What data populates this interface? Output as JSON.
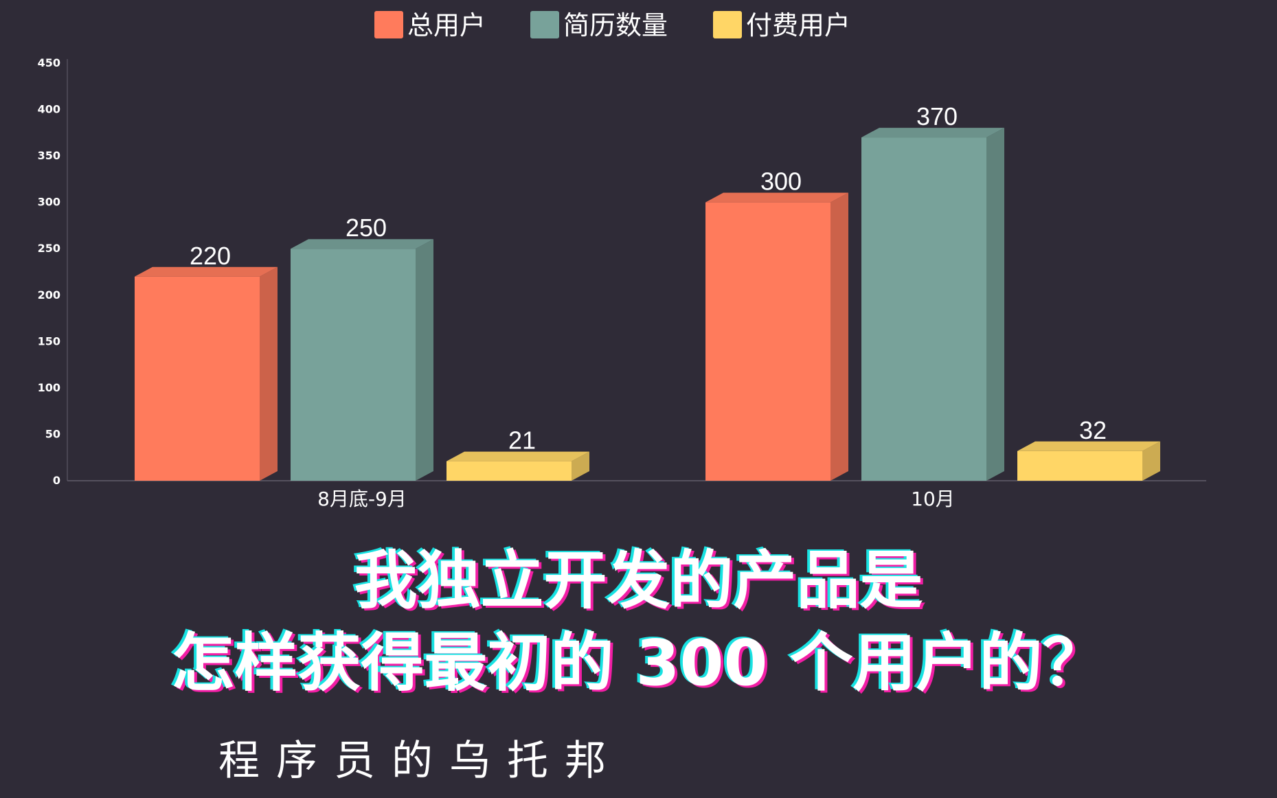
{
  "chart_data": {
    "type": "bar",
    "categories": [
      "8月底-9月",
      "10月"
    ],
    "series": [
      {
        "name": "总用户",
        "values": [
          220,
          300
        ],
        "color": "#ff7b5c"
      },
      {
        "name": "简历数量",
        "values": [
          250,
          370
        ],
        "color": "#78a29a"
      },
      {
        "name": "付费用户",
        "values": [
          21,
          32
        ],
        "color": "#ffd666"
      }
    ],
    "ylim": [
      0,
      450
    ],
    "yticks": [
      0,
      50,
      100,
      150,
      200,
      250,
      300,
      350,
      400,
      450
    ],
    "legend_position": "top-center",
    "grid": false,
    "style": "3d-bars"
  },
  "headline": {
    "line1": "我独立开发的产品是",
    "line2": "怎样获得最初的 300 个用户的？"
  },
  "byline": "程序员的乌托邦",
  "colors": {
    "background": "#2f2b37",
    "text": "#ffffff"
  }
}
